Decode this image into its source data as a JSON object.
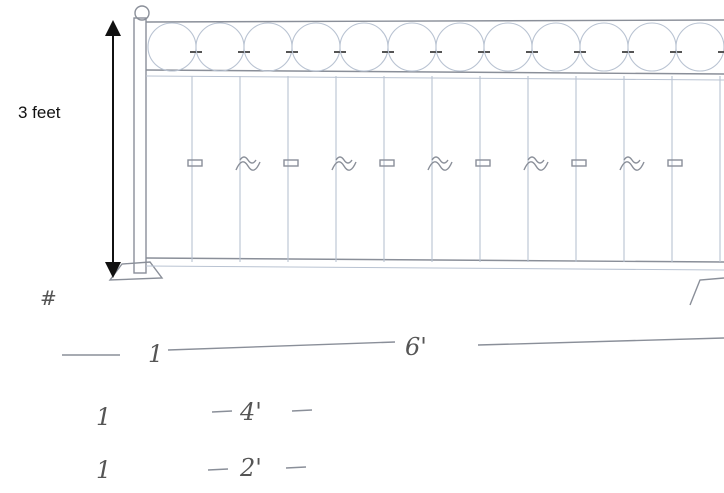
{
  "annotation": "3 feet",
  "corner_mark": "#",
  "dimensions": [
    {
      "count": "1",
      "length": "6'"
    },
    {
      "count": "1",
      "length": "4'"
    },
    {
      "count": "1",
      "length": "2'"
    }
  ]
}
